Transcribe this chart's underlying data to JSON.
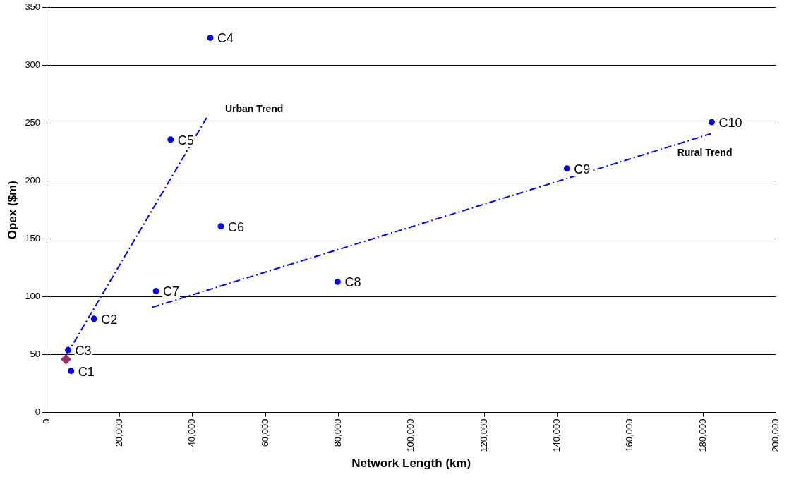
{
  "chart_data": {
    "type": "scatter",
    "xlabel": "Network Length (km)",
    "ylabel": "Opex ($m)",
    "xlim": [
      0,
      200000
    ],
    "xticks": [
      {
        "value": 0,
        "label": "0"
      },
      {
        "value": 20000,
        "label": "20,000"
      },
      {
        "value": 40000,
        "label": "40,000"
      },
      {
        "value": 60000,
        "label": "60,000"
      },
      {
        "value": 80000,
        "label": "80,000"
      },
      {
        "value": 100000,
        "label": "100,000"
      },
      {
        "value": 120000,
        "label": "120,000"
      },
      {
        "value": 140000,
        "label": "140,000"
      },
      {
        "value": 160000,
        "label": "160,000"
      },
      {
        "value": 180000,
        "label": "180,000"
      },
      {
        "value": 200000,
        "label": "200,000"
      }
    ],
    "ylim": [
      0,
      350
    ],
    "yticks": [
      0,
      50,
      100,
      150,
      200,
      250,
      300,
      350
    ],
    "grid": "y",
    "legend": false,
    "series": [
      {
        "color": "#0000ff",
        "marker": "circle",
        "x": [
          6700,
          13000,
          5900,
          44900,
          34000,
          47800,
          30000,
          79800,
          142700,
          182400
        ],
        "values": [
          36,
          81,
          54,
          324,
          236,
          161,
          105,
          113,
          211,
          251
        ]
      },
      {
        "color": "#993366",
        "marker": "diamond",
        "x": [
          5300
        ],
        "values": [
          46
        ]
      },
      {
        "type": "line",
        "name": "Urban Trend",
        "color": "#0000ff",
        "line_style": "dashed",
        "marker": "none",
        "x": [
          5500,
          44300
        ],
        "values": [
          50,
          257
        ]
      },
      {
        "type": "line",
        "name": "Rural Trend",
        "color": "#0000ff",
        "line_style": "dashed",
        "marker": "none",
        "x": [
          29000,
          182200
        ],
        "values": [
          91,
          241
        ]
      }
    ],
    "annotations": [
      {
        "text": "C1",
        "x": 6700,
        "y": 36
      },
      {
        "text": "C2",
        "x": 13000,
        "y": 81
      },
      {
        "text": "C3",
        "x": 5900,
        "y": 54
      },
      {
        "text": "C4",
        "x": 44900,
        "y": 324
      },
      {
        "text": "C5",
        "x": 34000,
        "y": 236
      },
      {
        "text": "C6",
        "x": 47800,
        "y": 161
      },
      {
        "text": "C7",
        "x": 30000,
        "y": 105
      },
      {
        "text": "C8",
        "x": 79800,
        "y": 113
      },
      {
        "text": "C9",
        "x": 142700,
        "y": 211
      },
      {
        "text": "C10",
        "x": 182400,
        "y": 251
      }
    ]
  }
}
